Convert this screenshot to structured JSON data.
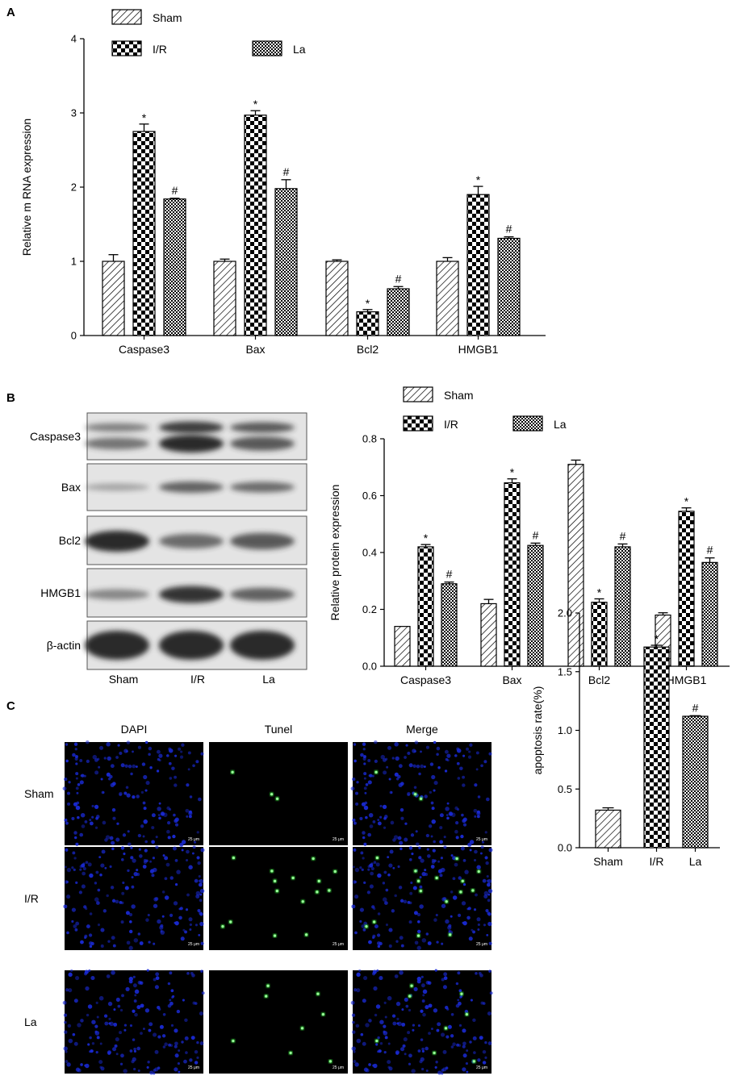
{
  "panels": {
    "a": "A",
    "b": "B",
    "c": "C"
  },
  "chart_data": [
    {
      "type": "bar",
      "panel": "A",
      "categories": [
        "Caspase3",
        "Bax",
        "Bcl2",
        "HMGB1"
      ],
      "ylabel": "Relative  m RNA expression",
      "ylim": [
        0,
        4
      ],
      "yticks": [
        "0",
        "1",
        "2",
        "3",
        "4"
      ],
      "legend": "top-left",
      "series": [
        {
          "name": "Sham",
          "pattern": "diagonal-hatch",
          "values": [
            1.0,
            1.0,
            1.0,
            1.0
          ],
          "errors": [
            0.09,
            0.03,
            0.02,
            0.05
          ],
          "marks": [
            "",
            "",
            "",
            ""
          ]
        },
        {
          "name": "I/R",
          "pattern": "checkerboard",
          "values": [
            2.75,
            2.97,
            0.32,
            1.9
          ],
          "errors": [
            0.1,
            0.06,
            0.03,
            0.11
          ],
          "marks": [
            "*",
            "*",
            "*",
            "*"
          ]
        },
        {
          "name": "La",
          "pattern": "fine-check",
          "values": [
            1.84,
            1.98,
            0.63,
            1.31
          ],
          "errors": [
            0.01,
            0.12,
            0.03,
            0.02
          ],
          "marks": [
            "#",
            "#",
            "#",
            "#"
          ]
        }
      ]
    },
    {
      "type": "bar",
      "panel": "B",
      "categories": [
        "Caspase3",
        "Bax",
        "Bcl2",
        "HMGB1"
      ],
      "ylabel": "Relative protein expression",
      "ylim": [
        0,
        0.8
      ],
      "yticks": [
        "0.0",
        "0.2",
        "0.4",
        "0.6",
        "0.8"
      ],
      "legend": "top",
      "series": [
        {
          "name": "Sham",
          "pattern": "diagonal-hatch",
          "values": [
            0.14,
            0.22,
            0.71,
            0.18
          ],
          "errors": [
            0.0,
            0.015,
            0.015,
            0.008
          ],
          "marks": [
            "",
            "",
            "",
            ""
          ]
        },
        {
          "name": "I/R",
          "pattern": "checkerboard",
          "values": [
            0.42,
            0.645,
            0.225,
            0.545
          ],
          "errors": [
            0.008,
            0.014,
            0.012,
            0.012
          ],
          "marks": [
            "*",
            "*",
            "*",
            "*"
          ]
        },
        {
          "name": "La",
          "pattern": "fine-check",
          "values": [
            0.29,
            0.425,
            0.42,
            0.365
          ],
          "errors": [
            0.006,
            0.008,
            0.01,
            0.016
          ],
          "marks": [
            "#",
            "#",
            "#",
            "#"
          ]
        }
      ]
    },
    {
      "type": "bar",
      "panel": "C",
      "categories": [
        "Sham",
        "I/R",
        "La"
      ],
      "ylabel": "apoptosis rate(%)",
      "ylim": [
        0,
        2
      ],
      "yticks": [
        "0.0",
        "0.5",
        "1.0",
        "1.5",
        "2.0"
      ],
      "series": [
        {
          "name": "",
          "patterns": [
            "diagonal-hatch",
            "checkerboard",
            "fine-check"
          ],
          "values": [
            0.32,
            1.71,
            1.12
          ],
          "errors": [
            0.02,
            0.015,
            0.005
          ],
          "marks": [
            "",
            "*",
            "#"
          ]
        }
      ]
    }
  ],
  "blot": {
    "rows": [
      "Caspase3",
      "Bax",
      "Bcl2",
      "HMGB1",
      "β-actin"
    ],
    "lanes": [
      "Sham",
      "I/R",
      "La"
    ]
  },
  "micrographs": {
    "columns": [
      "DAPI",
      "Tunel",
      "Merge"
    ],
    "rows": [
      "Sham",
      "I/R",
      "La"
    ],
    "scale_bar": "25 μm",
    "tunel_counts": [
      3,
      15,
      8
    ]
  },
  "colors": {
    "ink": "#000000",
    "dapi": "#1a2bd8",
    "tunel": "#39e83c",
    "blot_bg": "#e4e4e4",
    "blot_band": "#2a2a2a"
  }
}
